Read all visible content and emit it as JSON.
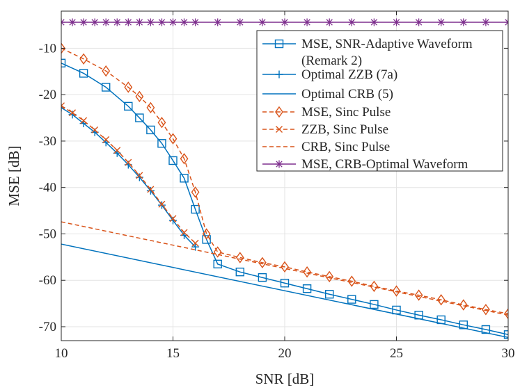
{
  "chart_data": {
    "type": "line",
    "title": "",
    "xlabel": "SNR [dB]",
    "ylabel": "MSE [dB]",
    "xlim": [
      10,
      30
    ],
    "ylim": [
      -73,
      -2
    ],
    "grid": true,
    "legend_position": "top-right",
    "xticks": [
      10,
      15,
      20,
      25,
      30
    ],
    "yticks": [
      -70,
      -60,
      -50,
      -40,
      -30,
      -20,
      -10
    ],
    "series": [
      {
        "name": "MSE, SNR-Adaptive Waveform",
        "name_line2": "(Remark 2)",
        "color": "#0072BD",
        "line_style": "solid",
        "marker": "square",
        "x": [
          10,
          11,
          12,
          13,
          13.5,
          14,
          14.5,
          15,
          15.5,
          16,
          16.5,
          17,
          18,
          19,
          20,
          21,
          22,
          23,
          24,
          25,
          26,
          27,
          28,
          29,
          30
        ],
        "y": [
          -13.2,
          -15.4,
          -18.4,
          -22.5,
          -25.0,
          -27.6,
          -30.5,
          -34.2,
          -38.0,
          -44.7,
          -51.2,
          -56.5,
          -58.2,
          -59.4,
          -60.6,
          -61.8,
          -63.0,
          -64.1,
          -65.2,
          -66.4,
          -67.5,
          -68.5,
          -69.6,
          -70.6,
          -71.7
        ]
      },
      {
        "name": "Optimal ZZB (7a)",
        "color": "#0072BD",
        "line_style": "solid",
        "marker": "plus",
        "x": [
          10,
          10.5,
          11,
          11.5,
          12,
          12.5,
          13,
          13.5,
          14,
          14.5,
          15,
          15.5,
          16
        ],
        "y": [
          -22.8,
          -24.3,
          -26.2,
          -28.1,
          -30.3,
          -32.6,
          -35.1,
          -37.8,
          -40.7,
          -43.8,
          -47.1,
          -50.3,
          -52.8
        ]
      },
      {
        "name": "Optimal CRB (5)",
        "color": "#0072BD",
        "line_style": "solid",
        "marker": "none",
        "x": [
          10,
          30
        ],
        "y": [
          -52.2,
          -72.3
        ]
      },
      {
        "name": "MSE, Sinc Pulse",
        "color": "#D95319",
        "line_style": "dashed",
        "marker": "diamond",
        "x": [
          10,
          11,
          12,
          13,
          13.5,
          14,
          14.5,
          15,
          15.5,
          16,
          16.5,
          17,
          18,
          19,
          20,
          21,
          22,
          23,
          24,
          25,
          26,
          27,
          28,
          29,
          30
        ],
        "y": [
          -10.0,
          -12.3,
          -14.9,
          -18.4,
          -20.4,
          -22.8,
          -26.0,
          -29.5,
          -33.8,
          -41.0,
          -50.0,
          -53.9,
          -55.1,
          -56.2,
          -57.1,
          -58.2,
          -59.2,
          -60.2,
          -61.3,
          -62.3,
          -63.2,
          -64.2,
          -65.3,
          -66.3,
          -67.2
        ]
      },
      {
        "name": "ZZB, Sinc Pulse",
        "color": "#D95319",
        "line_style": "dashed",
        "marker": "x",
        "x": [
          10,
          10.5,
          11,
          11.5,
          12,
          12.5,
          13,
          13.5,
          14,
          14.5,
          15,
          15.5,
          16
        ],
        "y": [
          -22.4,
          -23.9,
          -25.6,
          -27.6,
          -29.7,
          -32.0,
          -34.6,
          -37.4,
          -40.4,
          -43.6,
          -46.7,
          -49.7,
          -52.0
        ]
      },
      {
        "name": "CRB, Sinc Pulse",
        "color": "#D95319",
        "line_style": "dashed",
        "marker": "none",
        "x": [
          10,
          30
        ],
        "y": [
          -47.4,
          -67.5
        ]
      },
      {
        "name": "MSE, CRB-Optimal Waveform",
        "color": "#7E2F8E",
        "line_style": "solid",
        "marker": "asterisk",
        "x": [
          10,
          10.5,
          11,
          11.5,
          12,
          12.5,
          13,
          13.5,
          14,
          14.5,
          15,
          15.5,
          16,
          17,
          18,
          19,
          20,
          21,
          22,
          23,
          24,
          25,
          26,
          27,
          28,
          29,
          30
        ],
        "y": [
          -4.4,
          -4.4,
          -4.4,
          -4.4,
          -4.4,
          -4.4,
          -4.4,
          -4.4,
          -4.4,
          -4.4,
          -4.4,
          -4.4,
          -4.4,
          -4.4,
          -4.4,
          -4.4,
          -4.4,
          -4.4,
          -4.4,
          -4.4,
          -4.4,
          -4.4,
          -4.4,
          -4.4,
          -4.4,
          -4.4,
          -4.4
        ]
      }
    ]
  }
}
